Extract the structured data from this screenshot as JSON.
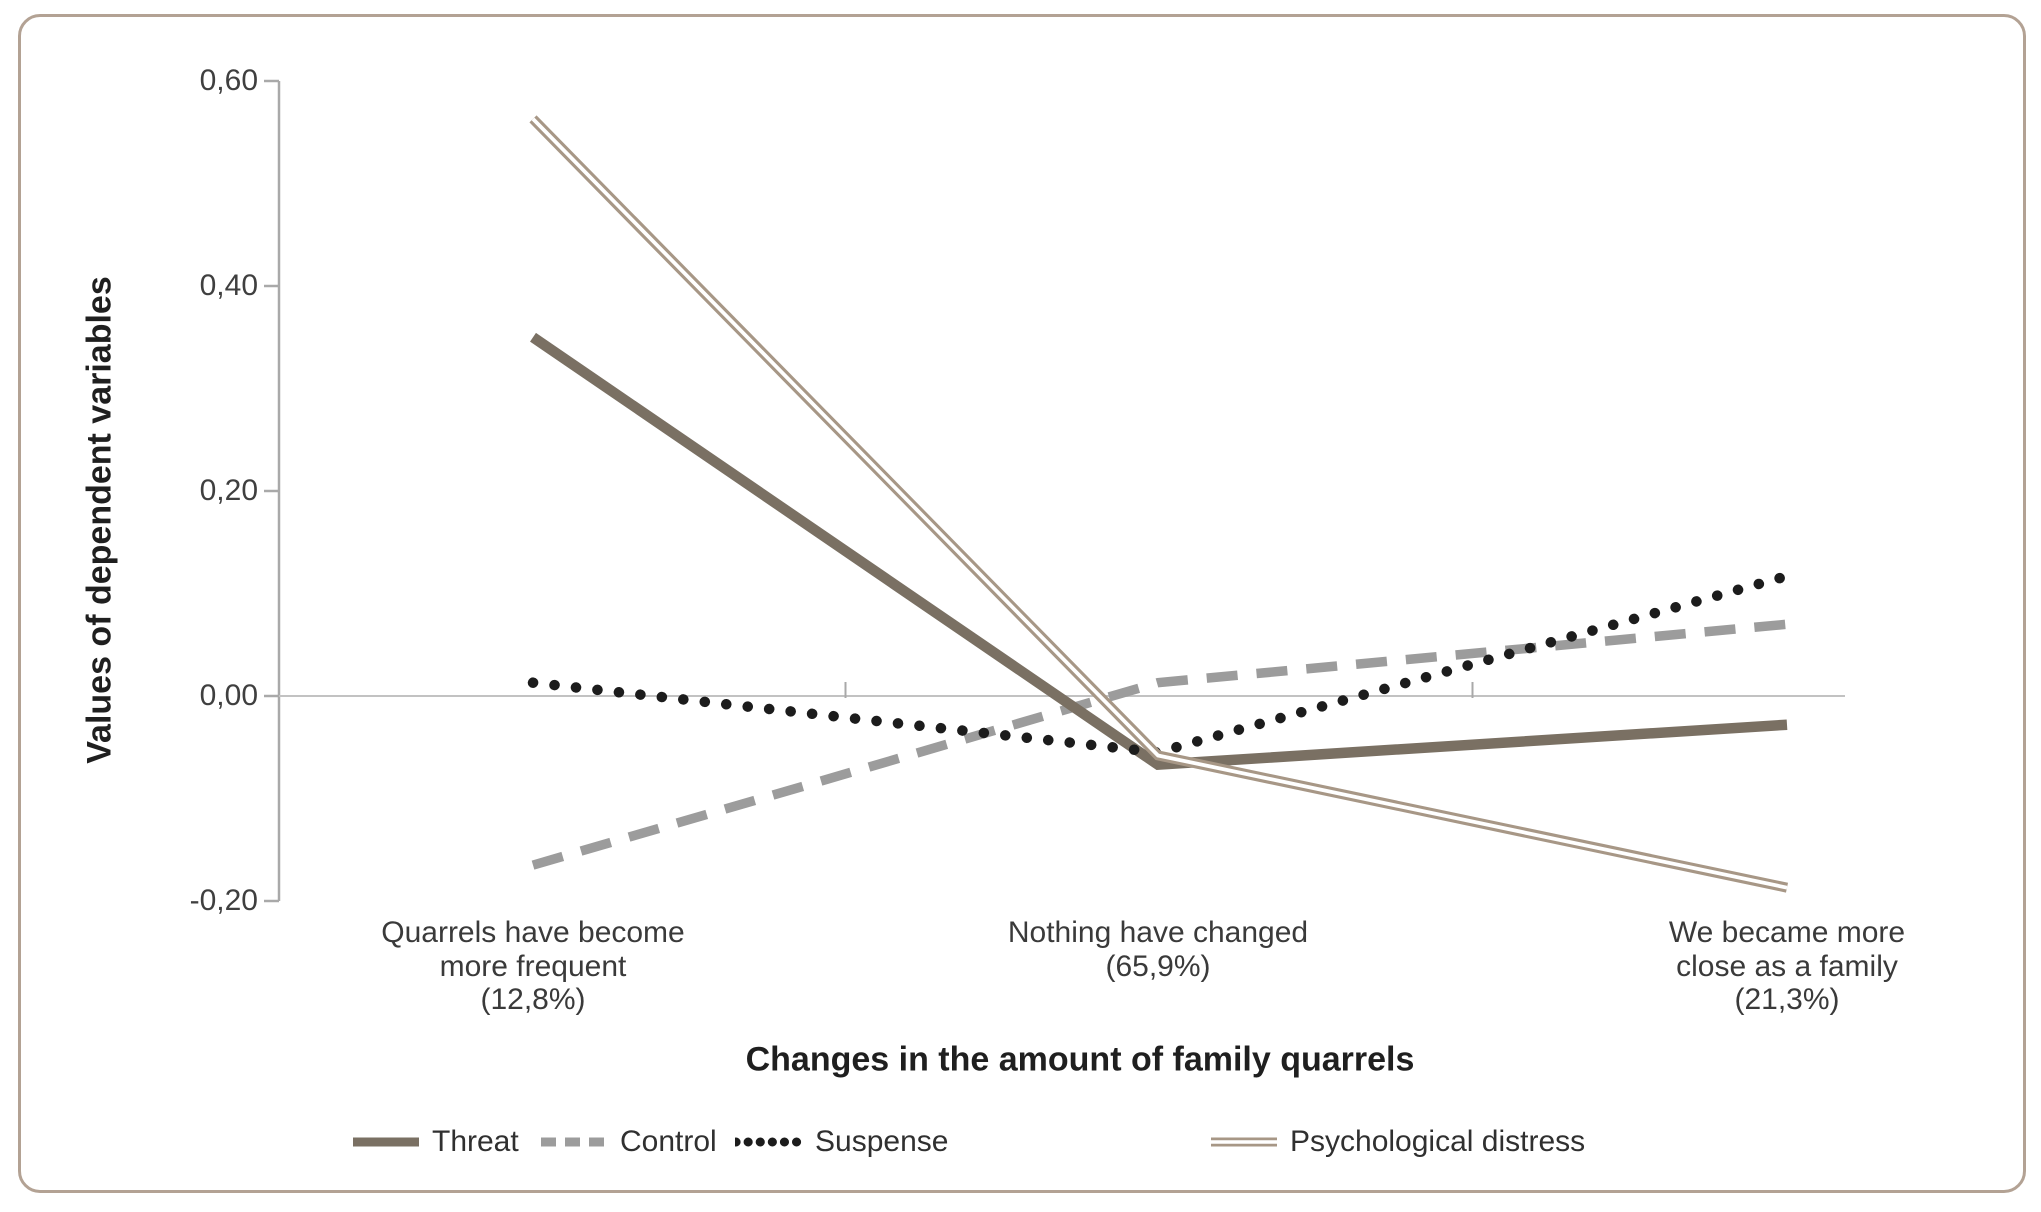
{
  "chart_data": {
    "type": "line",
    "categories": [
      "Quarrels have become more frequent (12,8%)",
      "Nothing have changed (65,9%)",
      "We became more close as a family (21,3%)"
    ],
    "category_label_lines": [
      [
        "Quarrels have become",
        "more frequent",
        "(12,8%)"
      ],
      [
        "Nothing have changed",
        "(65,9%)"
      ],
      [
        "We became more",
        "close as a family",
        "(21,3%)"
      ]
    ],
    "series": [
      {
        "name": "Threat",
        "values": [
          0.35,
          -0.067,
          -0.028
        ],
        "style": "solid",
        "color": "#7a7063"
      },
      {
        "name": "Control",
        "values": [
          -0.165,
          0.013,
          0.07
        ],
        "style": "dashed",
        "color": "#9c9c9c"
      },
      {
        "name": "Suspense",
        "values": [
          0.013,
          -0.055,
          0.117
        ],
        "style": "dotted",
        "color": "#1c1c1c"
      },
      {
        "name": "Psychological distress",
        "values": [
          0.563,
          -0.058,
          -0.187
        ],
        "style": "double",
        "color": "#a79786"
      }
    ],
    "xlabel": "Changes in the amount of family quarrels",
    "ylabel": "Values of dependent variables",
    "ylim": [
      -0.2,
      0.6
    ],
    "ytick_values": [
      0.6,
      0.4,
      0.2,
      0.0,
      -0.2
    ],
    "ytick_labels": [
      "0,60",
      "0,40",
      "0,20",
      "0,00",
      "-0,20"
    ],
    "grid": false,
    "zero_line": true,
    "legend_position": "bottom",
    "colors": {
      "frame_border": "#b3a294",
      "axis_line": "#a9a9a9",
      "zero_line": "#c2c2c2",
      "tick_text": "#3f3f3f",
      "title_text": "#1f1f1f"
    }
  }
}
